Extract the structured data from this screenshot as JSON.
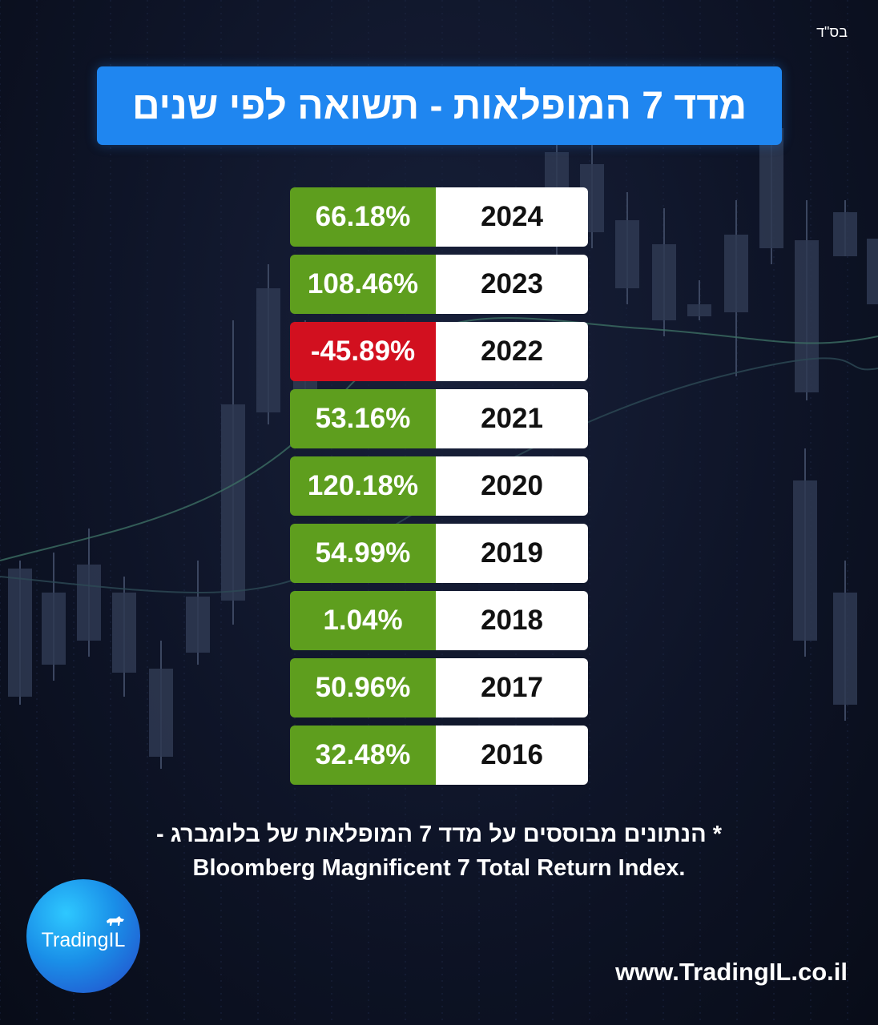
{
  "header": {
    "bsd": "בס\"ד",
    "title": "מדד 7 המופלאות - תשואה לפי שנים"
  },
  "chart_data": {
    "type": "table",
    "title": "מדד 7 המופלאות - תשואה לפי שנים",
    "columns": [
      "year",
      "return"
    ],
    "rows": [
      {
        "year": "2024",
        "value": "66.18%",
        "return_pct": 66.18
      },
      {
        "year": "2023",
        "value": "108.46%",
        "return_pct": 108.46
      },
      {
        "year": "2022",
        "value": "-45.89%",
        "return_pct": -45.89
      },
      {
        "year": "2021",
        "value": "53.16%",
        "return_pct": 53.16
      },
      {
        "year": "2020",
        "value": "120.18%",
        "return_pct": 120.18
      },
      {
        "year": "2019",
        "value": "54.99%",
        "return_pct": 54.99
      },
      {
        "year": "2018",
        "value": "1.04%",
        "return_pct": 1.04
      },
      {
        "year": "2017",
        "value": "50.96%",
        "return_pct": 50.96
      },
      {
        "year": "2016",
        "value": "32.48%",
        "return_pct": 32.48
      }
    ],
    "colors": {
      "positive": "#5e9e1e",
      "negative": "#d2101f"
    }
  },
  "footnote": {
    "hebrew": "* הנתונים מבוססים על מדד 7 המופלאות של בלומברג -",
    "english": "Bloomberg Magnificent 7 Total Return Index."
  },
  "logo": {
    "text": "TradingIL",
    "icon": "bull-icon"
  },
  "footer": {
    "url": "www.TradingIL.co.il"
  },
  "colors": {
    "title_bg": "#1f86f0",
    "background": "#0e1427"
  }
}
